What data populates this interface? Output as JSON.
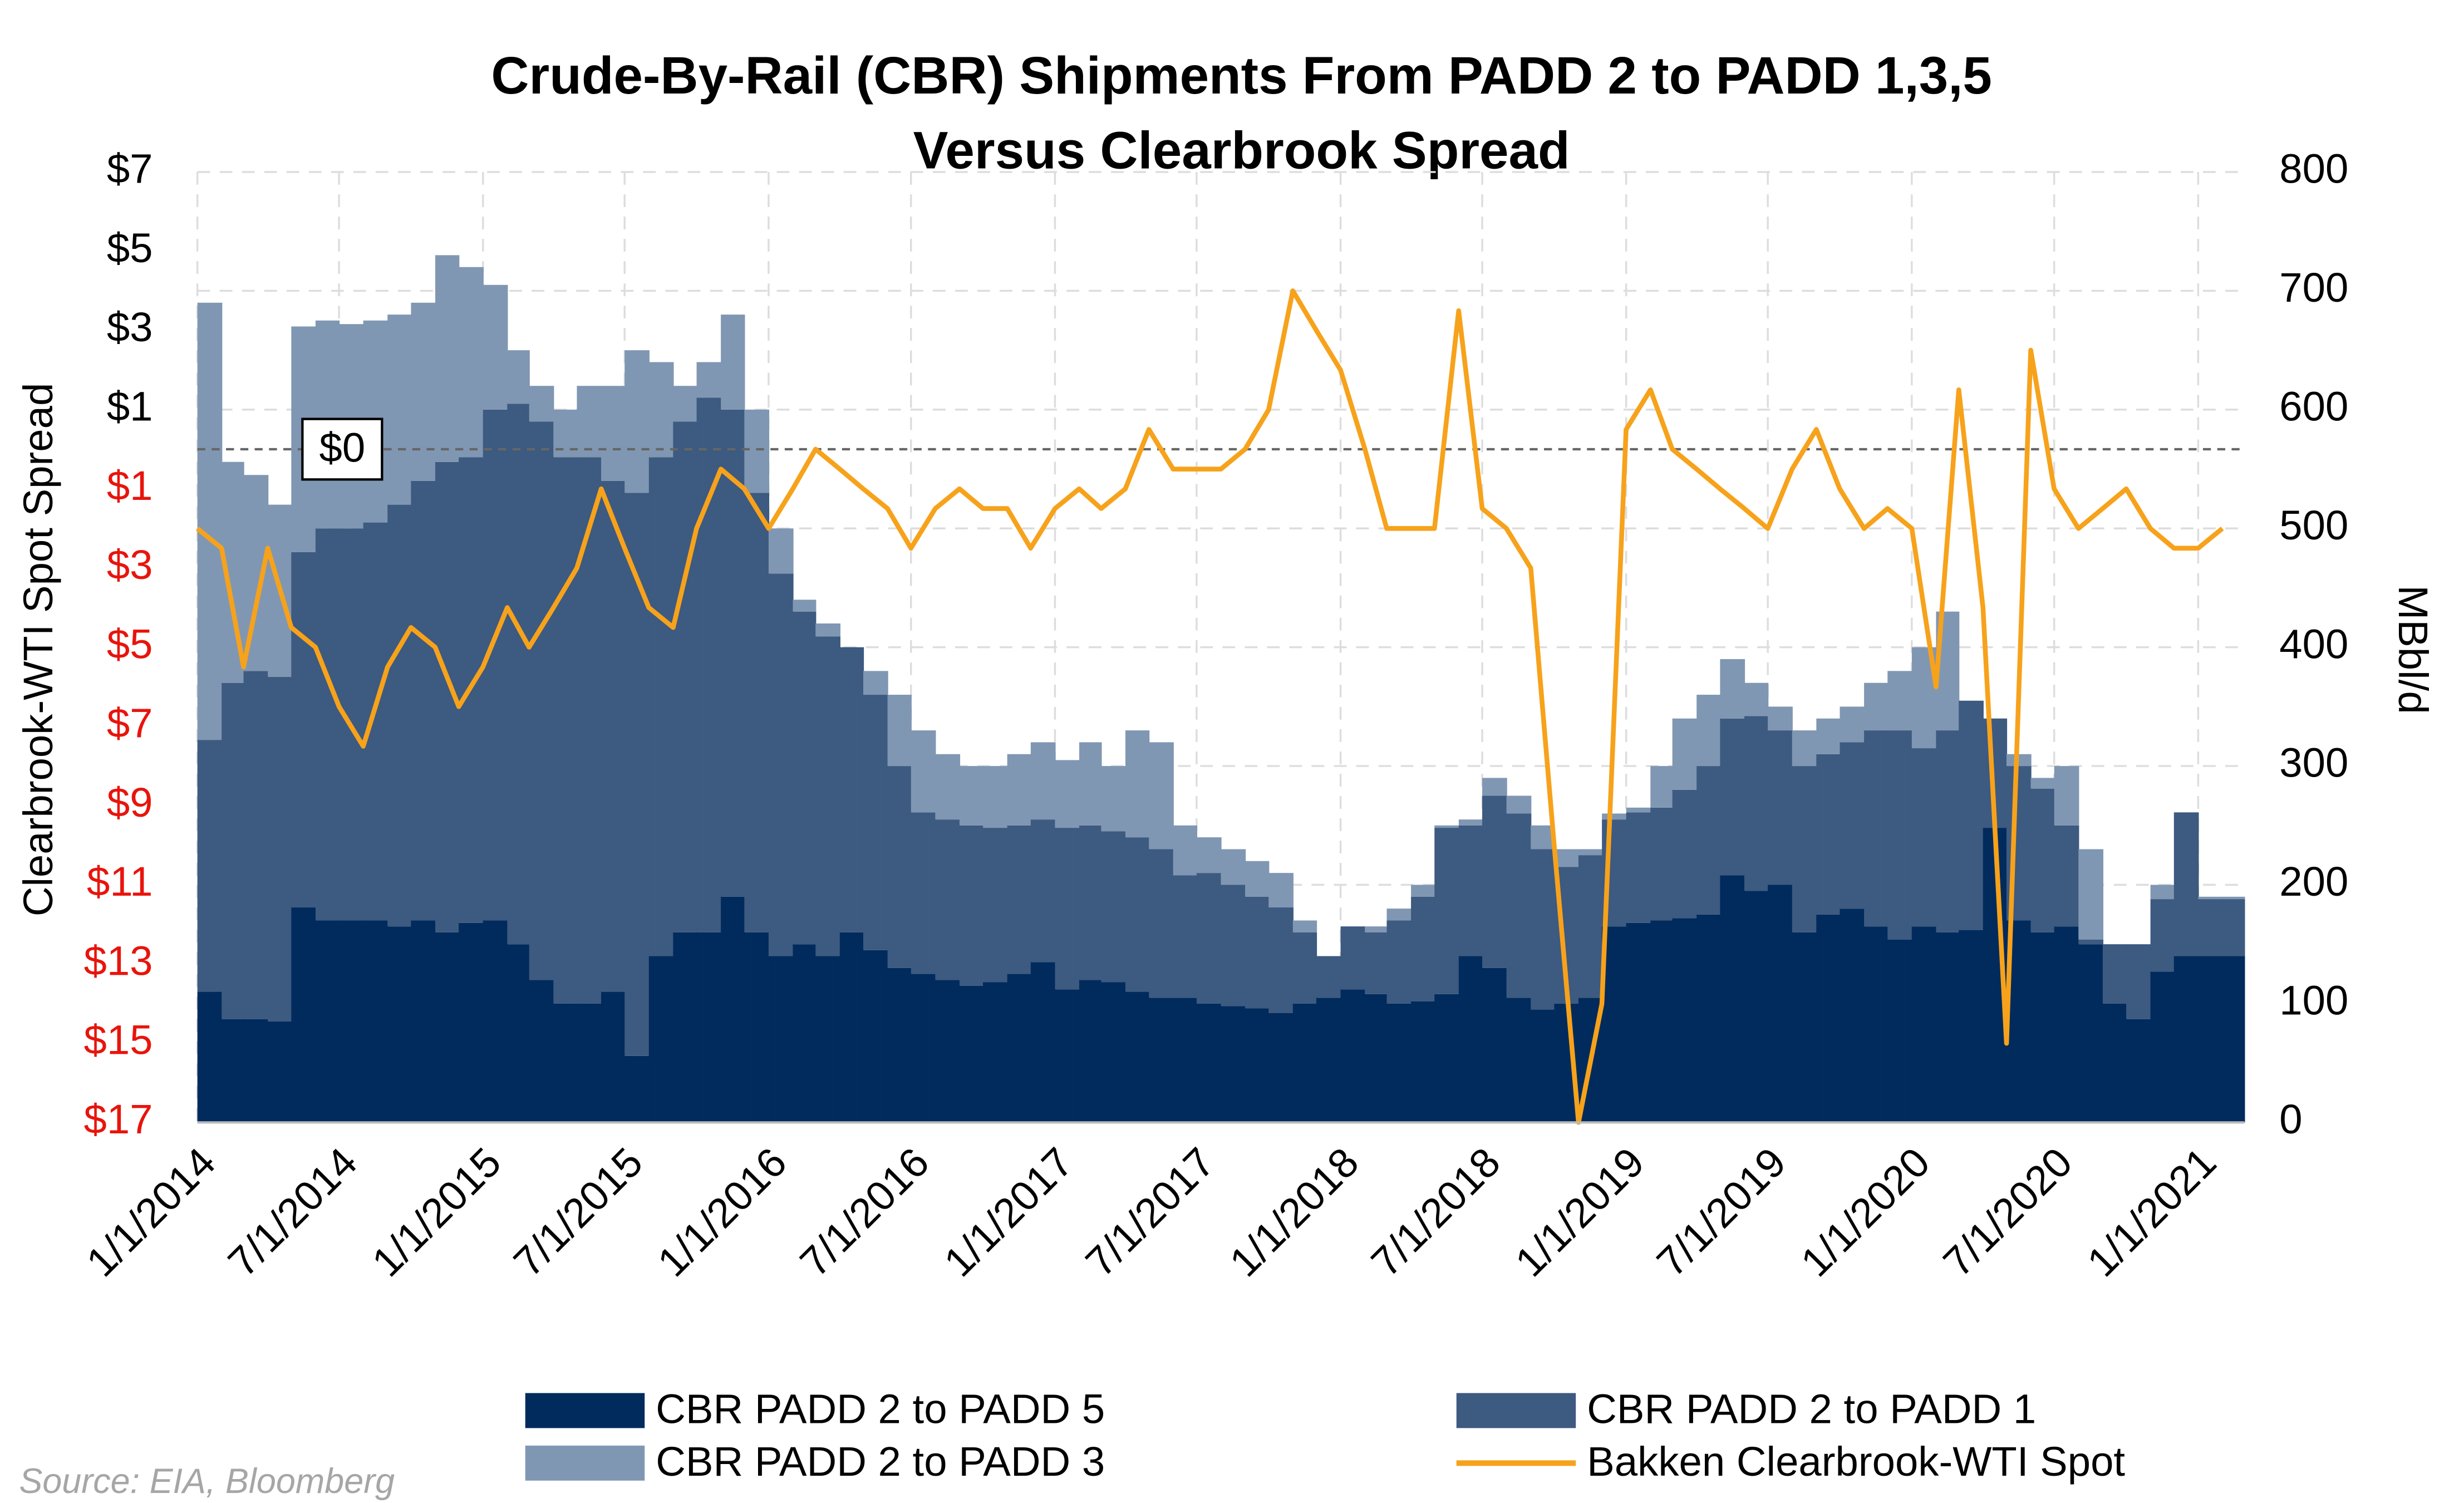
{
  "chart_data": {
    "type": "area",
    "title": [
      "Crude-By-Rail (CBR) Shipments From PADD 2 to PADD 1,3,5",
      "Versus Clearbrook Spread"
    ],
    "ylabel": "Clearbrook-WTI Spot Spread",
    "y2label": "MBbl/d",
    "source": "Source: EIA, Bloomberg",
    "x": [
      "2014-01-01",
      "2014-02-01",
      "2014-03-01",
      "2014-04-01",
      "2014-05-01",
      "2014-06-01",
      "2014-07-01",
      "2014-08-01",
      "2014-09-01",
      "2014-10-01",
      "2014-11-01",
      "2014-12-01",
      "2015-01-01",
      "2015-02-01",
      "2015-03-01",
      "2015-04-01",
      "2015-05-01",
      "2015-06-01",
      "2015-07-01",
      "2015-08-01",
      "2015-09-01",
      "2015-10-01",
      "2015-11-01",
      "2015-12-01",
      "2016-01-01",
      "2016-02-01",
      "2016-03-01",
      "2016-04-01",
      "2016-05-01",
      "2016-06-01",
      "2016-07-01",
      "2016-08-01",
      "2016-09-01",
      "2016-10-01",
      "2016-11-01",
      "2016-12-01",
      "2017-01-01",
      "2017-02-01",
      "2017-03-01",
      "2017-04-01",
      "2017-05-01",
      "2017-06-01",
      "2017-07-01",
      "2017-08-01",
      "2017-09-01",
      "2017-10-01",
      "2017-11-01",
      "2017-12-01",
      "2018-01-01",
      "2018-02-01",
      "2018-03-01",
      "2018-04-01",
      "2018-05-01",
      "2018-06-01",
      "2018-07-01",
      "2018-08-01",
      "2018-09-01",
      "2018-10-01",
      "2018-11-01",
      "2018-12-01",
      "2019-01-01",
      "2019-02-01",
      "2019-03-01",
      "2019-04-01",
      "2019-05-01",
      "2019-06-01",
      "2019-07-01",
      "2019-08-01",
      "2019-09-01",
      "2019-10-01",
      "2019-11-01",
      "2019-12-01",
      "2020-01-01",
      "2020-02-01",
      "2020-03-01",
      "2020-04-01",
      "2020-05-01",
      "2020-06-01",
      "2020-07-01",
      "2020-08-01",
      "2020-09-01",
      "2020-10-01",
      "2020-11-01",
      "2020-12-01",
      "2021-01-01",
      "2021-02-01"
    ],
    "xlim": [
      "2014-01-01",
      "2021-03-01"
    ],
    "xticks": [
      {
        "value": "2014-01-01",
        "label": "1/1/2014"
      },
      {
        "value": "2014-07-01",
        "label": "7/1/2014"
      },
      {
        "value": "2015-01-01",
        "label": "1/1/2015"
      },
      {
        "value": "2015-07-01",
        "label": "7/1/2015"
      },
      {
        "value": "2016-01-01",
        "label": "1/1/2016"
      },
      {
        "value": "2016-07-01",
        "label": "7/1/2016"
      },
      {
        "value": "2017-01-01",
        "label": "1/1/2017"
      },
      {
        "value": "2017-07-01",
        "label": "7/1/2017"
      },
      {
        "value": "2018-01-01",
        "label": "1/1/2018"
      },
      {
        "value": "2018-07-01",
        "label": "7/1/2018"
      },
      {
        "value": "2019-01-01",
        "label": "1/1/2019"
      },
      {
        "value": "2019-07-01",
        "label": "7/1/2019"
      },
      {
        "value": "2020-01-01",
        "label": "1/1/2020"
      },
      {
        "value": "2020-07-01",
        "label": "7/1/2020"
      },
      {
        "value": "2021-01-01",
        "label": "1/1/2021"
      }
    ],
    "ylim": [
      -17,
      7
    ],
    "yticks": [
      {
        "value": 7,
        "label": "$7"
      },
      {
        "value": 5,
        "label": "$5"
      },
      {
        "value": 3,
        "label": "$3"
      },
      {
        "value": 1,
        "label": "$1"
      },
      {
        "value": -1,
        "label": "$1"
      },
      {
        "value": -3,
        "label": "$3"
      },
      {
        "value": -5,
        "label": "$5"
      },
      {
        "value": -7,
        "label": "$7"
      },
      {
        "value": -9,
        "label": "$9"
      },
      {
        "value": -11,
        "label": "$11"
      },
      {
        "value": -13,
        "label": "$13"
      },
      {
        "value": -15,
        "label": "$15"
      },
      {
        "value": -17,
        "label": "$17"
      }
    ],
    "negative_tick_color": "#e8140c",
    "y2lim": [
      0,
      800
    ],
    "y2ticks": [
      0,
      100,
      200,
      300,
      400,
      500,
      600,
      700,
      800
    ],
    "grid": true,
    "stacked": true,
    "annotations": [
      {
        "text": "$0",
        "y": 0
      }
    ],
    "series": [
      {
        "name": "CBR PADD 2 to PADD 5",
        "color": "#002b5c",
        "axis": "y2",
        "values": [
          110,
          87,
          87,
          85,
          181,
          170,
          170,
          170,
          165,
          170,
          160,
          168,
          170,
          150,
          120,
          100,
          100,
          110,
          56,
          140,
          160,
          160,
          190,
          160,
          140,
          150,
          140,
          160,
          145,
          130,
          125,
          120,
          115,
          118,
          125,
          135,
          112,
          120,
          118,
          110,
          105,
          105,
          100,
          98,
          96,
          92,
          100,
          105,
          112,
          108,
          100,
          102,
          108,
          140,
          130,
          105,
          95,
          100,
          105,
          165,
          168,
          170,
          172,
          175,
          208,
          195,
          200,
          160,
          175,
          180,
          165,
          154,
          165,
          160,
          162,
          248,
          170,
          160,
          165,
          150,
          100,
          87,
          127,
          140,
          140,
          140
        ]
      },
      {
        "name": "CBR PADD 2 to PADD 1",
        "color": "#3d5a80",
        "axis": "y2",
        "values": [
          212,
          283,
          293,
          290,
          299,
          330,
          330,
          335,
          355,
          370,
          396,
          392,
          430,
          455,
          470,
          460,
          460,
          430,
          474,
          420,
          430,
          450,
          410,
          370,
          322,
          280,
          269,
          240,
          215,
          170,
          136,
          135,
          135,
          130,
          125,
          120,
          136,
          130,
          127,
          130,
          125,
          103,
          110,
          102,
          94,
          89,
          60,
          35,
          53,
          52,
          70,
          88,
          140,
          110,
          145,
          155,
          135,
          115,
          120,
          90,
          93,
          95,
          108,
          125,
          132,
          147,
          130,
          140,
          135,
          140,
          165,
          176,
          150,
          170,
          193,
          92,
          130,
          121,
          85,
          4,
          50,
          63,
          61,
          121,
          48,
          48
        ]
      },
      {
        "name": "CBR PADD 2 to PADD 3",
        "color": "#8097b3",
        "axis": "y2",
        "values": [
          368,
          186,
          165,
          145,
          190,
          175,
          172,
          170,
          160,
          150,
          174,
          160,
          105,
          45,
          30,
          40,
          60,
          80,
          120,
          80,
          30,
          30,
          80,
          70,
          38,
          10,
          11,
          0,
          20,
          60,
          69,
          55,
          50,
          52,
          60,
          65,
          57,
          70,
          55,
          90,
          90,
          42,
          30,
          30,
          30,
          29,
          10,
          0,
          0,
          5,
          10,
          10,
          2,
          5,
          15,
          15,
          20,
          15,
          5,
          5,
          4,
          35,
          60,
          60,
          50,
          28,
          20,
          30,
          30,
          30,
          40,
          50,
          85,
          100,
          0,
          0,
          10,
          9,
          50,
          76,
          0,
          0,
          12,
          0,
          2,
          2
        ]
      },
      {
        "name": "Bakken Clearbrook-WTI Spot",
        "color": "#f7a21b",
        "axis": "y",
        "values": [
          -2,
          -2.5,
          -5.5,
          -2.5,
          -4.5,
          -5,
          -6.5,
          -7.5,
          -5.5,
          -4.5,
          -5,
          -6.5,
          -5.5,
          -4,
          -5,
          -4,
          -3,
          -1,
          -2.5,
          -4,
          -4.5,
          -2,
          -0.5,
          -1,
          -2,
          -1,
          0,
          -0.5,
          -1,
          -1.5,
          -2.5,
          -1.5,
          -1,
          -1.5,
          -1.5,
          -2.5,
          -1.5,
          -1,
          -1.5,
          -1,
          0.5,
          -0.5,
          -0.5,
          -0.5,
          0,
          1,
          4,
          3,
          2,
          0,
          -2,
          -2,
          -2,
          3.5,
          -1.5,
          -2,
          -3,
          -10,
          -17,
          -14,
          0.5,
          1.5,
          0,
          -0.5,
          -1,
          -1.5,
          -2,
          -0.5,
          0.5,
          -1,
          -2,
          -1.5,
          -2,
          -6,
          1.5,
          -4,
          -15,
          2.5,
          -1,
          -2,
          -1.5,
          -1,
          -2,
          -2.5,
          -2.5,
          -2
        ]
      }
    ]
  }
}
